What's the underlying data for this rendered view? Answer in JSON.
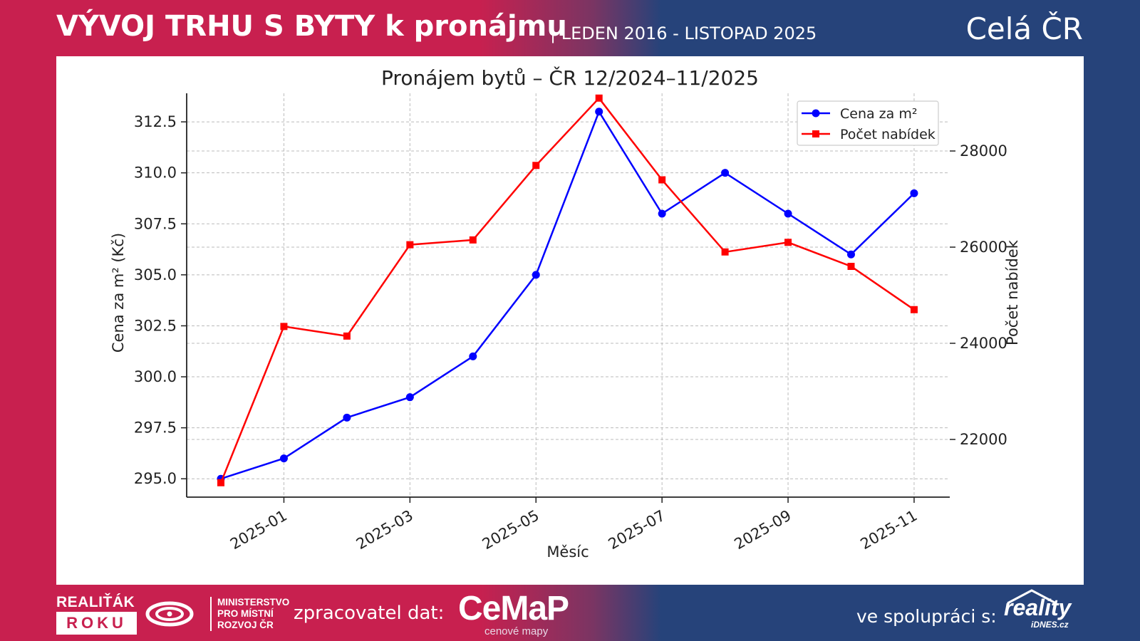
{
  "header": {
    "title": "VÝVOJ TRHU S BYTY k pronájmu",
    "subtitle": "| LEDEN 2016 - LISTOPAD 2025",
    "region": "Celá ČR"
  },
  "footer": {
    "award_top": "REALIŤÁK",
    "award_bottom": "ROKU",
    "ministry_line1": "MINISTERSTVO",
    "ministry_line2": "PRO MÍSTNÍ",
    "ministry_line3": "ROZVOJ ČR",
    "processor_label": "zpracovatel dat:",
    "cemap_logo": "CeMaP",
    "cemap_sub": "cenové mapy",
    "partner_label": "ve spolupráci s:",
    "reality_logo": "reality",
    "reality_sub": "iDNES.cz"
  },
  "chart_data": {
    "type": "line",
    "title": "Pronájem bytů – ČR 12/2024–11/2025",
    "xlabel": "Měsíc",
    "ylabel": "Cena za m² (Kč)",
    "y2label": "Počet nabídek",
    "x": [
      "2024-12",
      "2025-01",
      "2025-02",
      "2025-03",
      "2025-04",
      "2025-05",
      "2025-06",
      "2025-07",
      "2025-08",
      "2025-09",
      "2025-10",
      "2025-11"
    ],
    "x_ticks": [
      "2025-01",
      "2025-03",
      "2025-05",
      "2025-07",
      "2025-09",
      "2025-11"
    ],
    "ylim": [
      294.1,
      313.9
    ],
    "y_ticks": [
      295.0,
      297.5,
      300.0,
      302.5,
      305.0,
      307.5,
      310.0,
      312.5
    ],
    "y2lim": [
      20800,
      29200
    ],
    "y2_ticks": [
      22000,
      24000,
      26000,
      28000
    ],
    "grid": true,
    "legend_position": "top-right",
    "series": [
      {
        "name": "Cena za m²",
        "axis": "left",
        "color": "#0000ff",
        "marker": "circle",
        "values": [
          295,
          296,
          298,
          299,
          301,
          305,
          313,
          308,
          310,
          308,
          306,
          309
        ]
      },
      {
        "name": "Počet nabídek",
        "axis": "right",
        "color": "#ff0000",
        "marker": "square",
        "values": [
          21100,
          24350,
          24150,
          26050,
          26150,
          27700,
          29100,
          27400,
          25900,
          26100,
          25600,
          24700
        ]
      }
    ]
  }
}
